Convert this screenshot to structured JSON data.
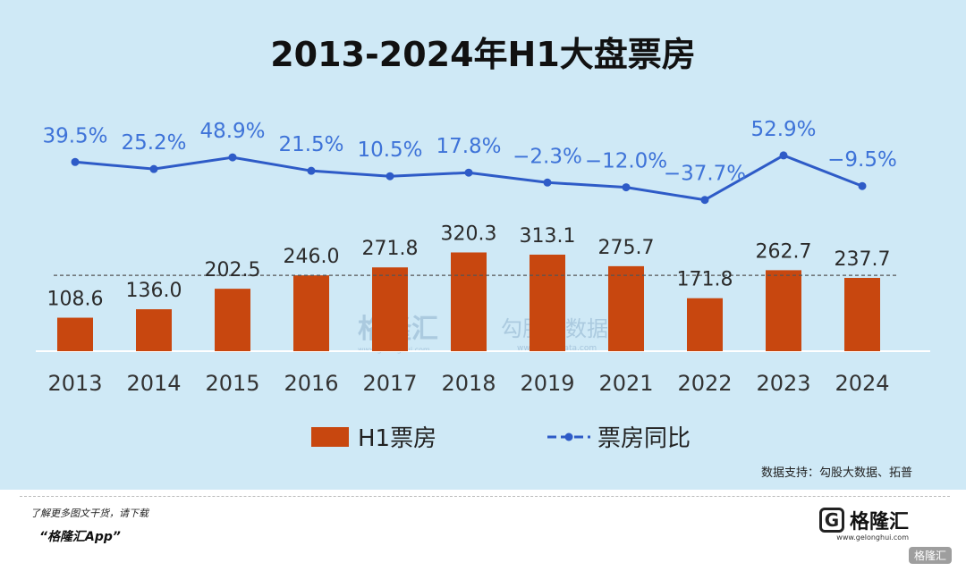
{
  "title": "2013-2024年H1大盘票房",
  "chart_data": {
    "type": "bar",
    "categories": [
      "2013",
      "2014",
      "2015",
      "2016",
      "2017",
      "2018",
      "2019",
      "2021",
      "2022",
      "2023",
      "2024"
    ],
    "series": [
      {
        "name": "H1票房",
        "type": "bar",
        "values": [
          108.6,
          136.0,
          202.5,
          246.0,
          271.8,
          320.3,
          313.1,
          275.7,
          171.8,
          262.7,
          237.7
        ],
        "labels": [
          "108.6",
          "136.0",
          "202.5",
          "246.0",
          "271.8",
          "320.3",
          "313.1",
          "275.7",
          "171.8",
          "262.7",
          "237.7"
        ],
        "color": "#c8470f"
      },
      {
        "name": "票房同比",
        "type": "line",
        "values": [
          39.5,
          25.2,
          48.9,
          21.5,
          10.5,
          17.8,
          -2.3,
          -12.0,
          -37.7,
          52.9,
          -9.5
        ],
        "labels": [
          "39.5%",
          "25.2%",
          "48.9%",
          "21.5%",
          "10.5%",
          "17.8%",
          "−2.3%",
          "−12.0%",
          "−37.7%",
          "52.9%",
          "−9.5%"
        ],
        "color": "#2e5bc7"
      }
    ],
    "reference_line": 246.0,
    "legend_position": "bottom-center",
    "grid": false
  },
  "source": "数据支持：勾股大数据、拓普",
  "watermarks": [
    "格隆汇",
    "www.gelonghui.com",
    "勾股大数据",
    "www.gogudata.com"
  ],
  "footer": {
    "tip": "了解更多图文干货，请下载",
    "app": "“格隆汇App”",
    "logo_text": "格隆汇",
    "logo_mark": "G",
    "logo_url": "www.gelonghui.com",
    "badge_text": "格隆汇"
  }
}
